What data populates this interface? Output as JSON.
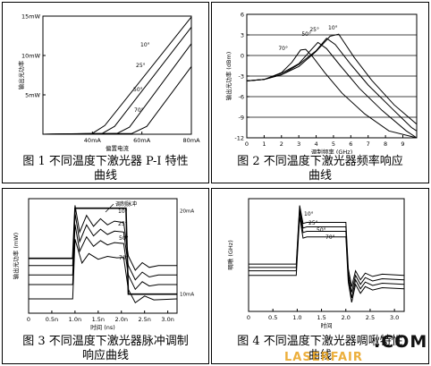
{
  "captions": {
    "fig1_l1": "图 1 不同温度下激光器 P-I 特性",
    "fig1_l2": "曲线",
    "fig2_l1": "图 2 不同温度下激光器频率响应",
    "fig2_l2": "曲线",
    "fig3_l1": "图 3  不同温度下激光器脉冲调制",
    "fig3_l2": "响应曲线",
    "fig4_l1": "图 4 不同温度下激光器啁啾特性",
    "fig4_l2": "曲线"
  },
  "watermark": {
    "main": "LASERFAIR",
    "suffix": ".COM"
  },
  "chart_data": [
    {
      "id": "fig1",
      "type": "line",
      "xlabel": "偏置电流",
      "ylabel": "输出光功率",
      "x_ticks": [
        "40mA",
        "60mA",
        "80mA"
      ],
      "y_ticks": [
        "5mW",
        "10mW",
        "15mW"
      ],
      "xlim": [
        20,
        80
      ],
      "ylim": [
        0,
        15
      ],
      "series": [
        {
          "name": "10°",
          "x": [
            20,
            40,
            45,
            80
          ],
          "y": [
            0,
            0.1,
            1.1,
            14.9
          ]
        },
        {
          "name": "25°",
          "x": [
            20,
            44,
            49,
            80
          ],
          "y": [
            0,
            0.1,
            1.0,
            13.6
          ]
        },
        {
          "name": "50°",
          "x": [
            20,
            50,
            55,
            80
          ],
          "y": [
            0,
            0.1,
            0.9,
            11.5
          ]
        },
        {
          "name": "70°",
          "x": [
            20,
            56,
            62,
            80
          ],
          "y": [
            0,
            0.1,
            1.0,
            8.6
          ]
        }
      ]
    },
    {
      "id": "fig2",
      "type": "line",
      "xlabel": "调制频率 (GHz)",
      "ylabel": "输出光功率 (dBm)",
      "x_ticks": [
        "0",
        "1",
        "2",
        "3",
        "4",
        "5",
        "6",
        "7",
        "8",
        "9"
      ],
      "y_ticks": [
        "6",
        "3",
        "0",
        "-3",
        "-6",
        "-9",
        "-12"
      ],
      "xlim": [
        0,
        9.8
      ],
      "ylim": [
        -12,
        6
      ],
      "grid_y": [
        3,
        0,
        -3,
        -6,
        -9
      ],
      "series": [
        {
          "name": "70°",
          "x": [
            0,
            1,
            2,
            2.6,
            3.1,
            3.4,
            3.8,
            4.5,
            5.5,
            6.8,
            8.2,
            9.8
          ],
          "y": [
            -3.7,
            -3.5,
            -2.5,
            -1,
            0.8,
            0.9,
            -0.2,
            -2.5,
            -5.5,
            -8.5,
            -11,
            -12
          ]
        },
        {
          "name": "50°",
          "x": [
            0,
            1,
            2,
            3,
            3.7,
            4.1,
            4.6,
            5.4,
            6.5,
            7.8,
            9.2,
            9.8
          ],
          "y": [
            -3.7,
            -3.5,
            -2.6,
            -1.2,
            0.8,
            1.9,
            1.0,
            -1.5,
            -4.8,
            -8,
            -11,
            -12
          ]
        },
        {
          "name": "25°",
          "x": [
            0,
            1,
            2,
            3,
            4,
            4.6,
            5.1,
            6,
            7,
            8.4,
            9.5,
            9.8
          ],
          "y": [
            -3.7,
            -3.5,
            -2.8,
            -1.3,
            0.7,
            2.5,
            1.6,
            -1.3,
            -4.3,
            -7.8,
            -10.5,
            -11
          ]
        },
        {
          "name": "10°",
          "x": [
            0,
            1,
            2,
            3,
            4,
            4.8,
            5.3,
            6.2,
            7.2,
            8.5,
            9.8
          ],
          "y": [
            -3.7,
            -3.5,
            -2.8,
            -1.6,
            0.6,
            2.8,
            3.1,
            -0.3,
            -3.6,
            -7.2,
            -10
          ]
        }
      ]
    },
    {
      "id": "fig3",
      "type": "line",
      "xlabel": "时间 (ns)",
      "ylabel": "输出光功率 (mW)",
      "x_ticks": [
        "0",
        "0.5n",
        "1.0n",
        "1.5n",
        "2.0n",
        "2.5n",
        "3.0n"
      ],
      "xlim": [
        0,
        3.2
      ],
      "ylim": [
        0,
        24
      ],
      "right_ticks": [
        "20mA",
        "10mA"
      ],
      "annotation": "调制脉冲",
      "series": [
        {
          "name": "调制脉冲",
          "x": [
            0,
            0.95,
            1.0,
            2.1,
            2.15,
            3.2
          ],
          "y": [
            11.5,
            11.5,
            22,
            22,
            4,
            4
          ]
        },
        {
          "name": "10°",
          "x": [
            0,
            0.95,
            1.0,
            1.1,
            1.25,
            1.4,
            1.55,
            1.7,
            1.85,
            2.05,
            2.15,
            2.3,
            2.45,
            2.6,
            2.8,
            3.2
          ],
          "y": [
            10,
            10,
            22.6,
            17,
            20.5,
            18.2,
            19.8,
            18.5,
            19.3,
            19,
            12,
            9,
            10.6,
            9.6,
            10,
            10
          ]
        },
        {
          "name": "25°",
          "x": [
            0,
            0.95,
            1.0,
            1.1,
            1.25,
            1.4,
            1.55,
            1.7,
            1.85,
            2.05,
            2.15,
            2.3,
            2.45,
            2.6,
            2.8,
            3.2
          ],
          "y": [
            8,
            8,
            21,
            15,
            18.5,
            16.2,
            17.6,
            16.5,
            17.2,
            17,
            10,
            7,
            8.6,
            7.6,
            8,
            8
          ]
        },
        {
          "name": "50°",
          "x": [
            0,
            0.95,
            1.0,
            1.1,
            1.25,
            1.4,
            1.55,
            1.7,
            1.85,
            2.05,
            2.15,
            2.3,
            2.45,
            2.6,
            2.8,
            3.2
          ],
          "y": [
            6,
            6,
            18.6,
            13,
            16,
            14,
            15.2,
            14.3,
            14.8,
            14.6,
            8,
            5,
            6.6,
            5.7,
            6,
            6
          ]
        },
        {
          "name": "70°",
          "x": [
            0,
            0.95,
            1.0,
            1.15,
            1.3,
            1.5,
            1.7,
            1.9,
            2.05,
            2.15,
            2.3,
            2.5,
            2.7,
            3.2
          ],
          "y": [
            3,
            3,
            15.5,
            10.5,
            12.5,
            11.3,
            11.9,
            11.6,
            11.7,
            5,
            2.2,
            3.6,
            2.8,
            3
          ]
        }
      ]
    },
    {
      "id": "fig4",
      "type": "line",
      "xlabel": "时间",
      "ylabel": "啁啾 (GHz)",
      "x_ticks": [
        "0",
        "0.5",
        "1.0",
        "1.5",
        "2.0",
        "2.5",
        "3.0"
      ],
      "xlim": [
        0,
        3.2
      ],
      "ylim": [
        -16,
        34
      ],
      "series": [
        {
          "name": "10°",
          "x": [
            0,
            0.98,
            1.05,
            1.12,
            1.2,
            2.0,
            2.05,
            2.12,
            2.2,
            2.3,
            2.4,
            2.55,
            2.75,
            3.2
          ],
          "y": [
            5,
            5,
            31,
            23,
            23.5,
            23.5,
            3,
            -5,
            2,
            -2,
            1,
            -0.5,
            0.5,
            0
          ]
        },
        {
          "name": "25°",
          "x": [
            0,
            0.98,
            1.05,
            1.12,
            1.2,
            2.0,
            2.05,
            2.12,
            2.2,
            2.3,
            2.4,
            2.55,
            2.75,
            3.2
          ],
          "y": [
            3.5,
            3.5,
            30,
            21,
            21.5,
            21.5,
            1,
            -7.5,
            0,
            -4,
            -1,
            -2.5,
            -1.5,
            -2
          ]
        },
        {
          "name": "50°",
          "x": [
            0,
            0.98,
            1.05,
            1.12,
            1.2,
            2.0,
            2.05,
            2.12,
            2.2,
            2.3,
            2.4,
            2.55,
            2.75,
            3.2
          ],
          "y": [
            2,
            2,
            28.5,
            19,
            19.5,
            19.5,
            -1,
            -10,
            -2,
            -6,
            -3,
            -4.5,
            -3.5,
            -4
          ]
        },
        {
          "name": "70°",
          "x": [
            0,
            0.98,
            1.05,
            1.12,
            1.2,
            2.0,
            2.05,
            2.12,
            2.2,
            2.3,
            2.4,
            2.55,
            2.75,
            3.2
          ],
          "y": [
            0,
            0,
            26,
            16.5,
            17,
            17,
            -3,
            -12,
            -4,
            -8,
            -5,
            -6.5,
            -5.5,
            -6
          ]
        }
      ]
    }
  ]
}
